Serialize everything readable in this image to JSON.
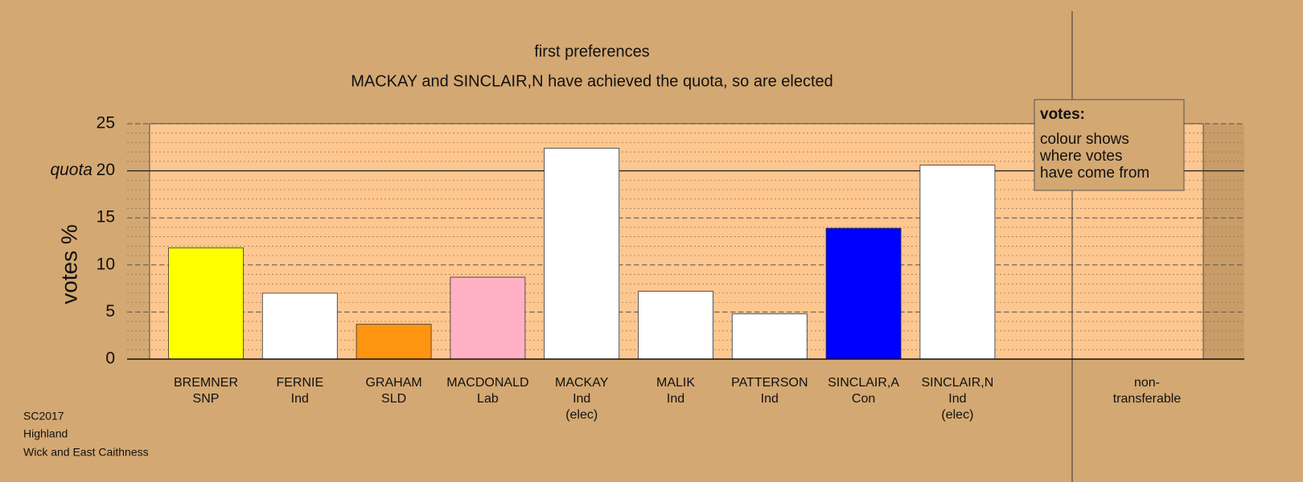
{
  "chart_data": {
    "type": "bar",
    "title": "first preferences",
    "subtitle": "MACKAY and SINCLAIR,N have achieved the quota, so are elected",
    "y_label": "votes %",
    "quota_label": "quota",
    "quota": 20,
    "categories": [
      [
        "BREMNER",
        "SNP"
      ],
      [
        "FERNIE",
        "Ind"
      ],
      [
        "GRAHAM",
        "SLD"
      ],
      [
        "MACDONALD",
        "Lab"
      ],
      [
        "MACKAY",
        "Ind",
        "(elec)"
      ],
      [
        "MALIK",
        "Ind"
      ],
      [
        "PATTERSON",
        "Ind"
      ],
      [
        "SINCLAIR,A",
        "Con"
      ],
      [
        "SINCLAIR,N",
        "Ind",
        "(elec)"
      ]
    ],
    "values": [
      11.8,
      7.0,
      3.7,
      8.7,
      22.4,
      7.2,
      4.8,
      13.9,
      20.6
    ],
    "colors": [
      "#ffff00",
      "#ffffff",
      "#ff9410",
      "#ffb0c4",
      "#ffffff",
      "#ffffff",
      "#ffffff",
      "#0000ff",
      "#ffffff"
    ],
    "extra_category": [
      "non-",
      "transferable"
    ],
    "ylim": [
      0,
      25
    ],
    "yticks": [
      0,
      5,
      10,
      15,
      20,
      25
    ],
    "minor_grid_step": 1,
    "grid": true,
    "legend": {
      "title": "votes:",
      "lines": [
        "colour shows",
        "where votes",
        "have come from"
      ]
    },
    "footer": [
      "SC2017",
      "Highland",
      "Wick and East Caithness"
    ]
  }
}
